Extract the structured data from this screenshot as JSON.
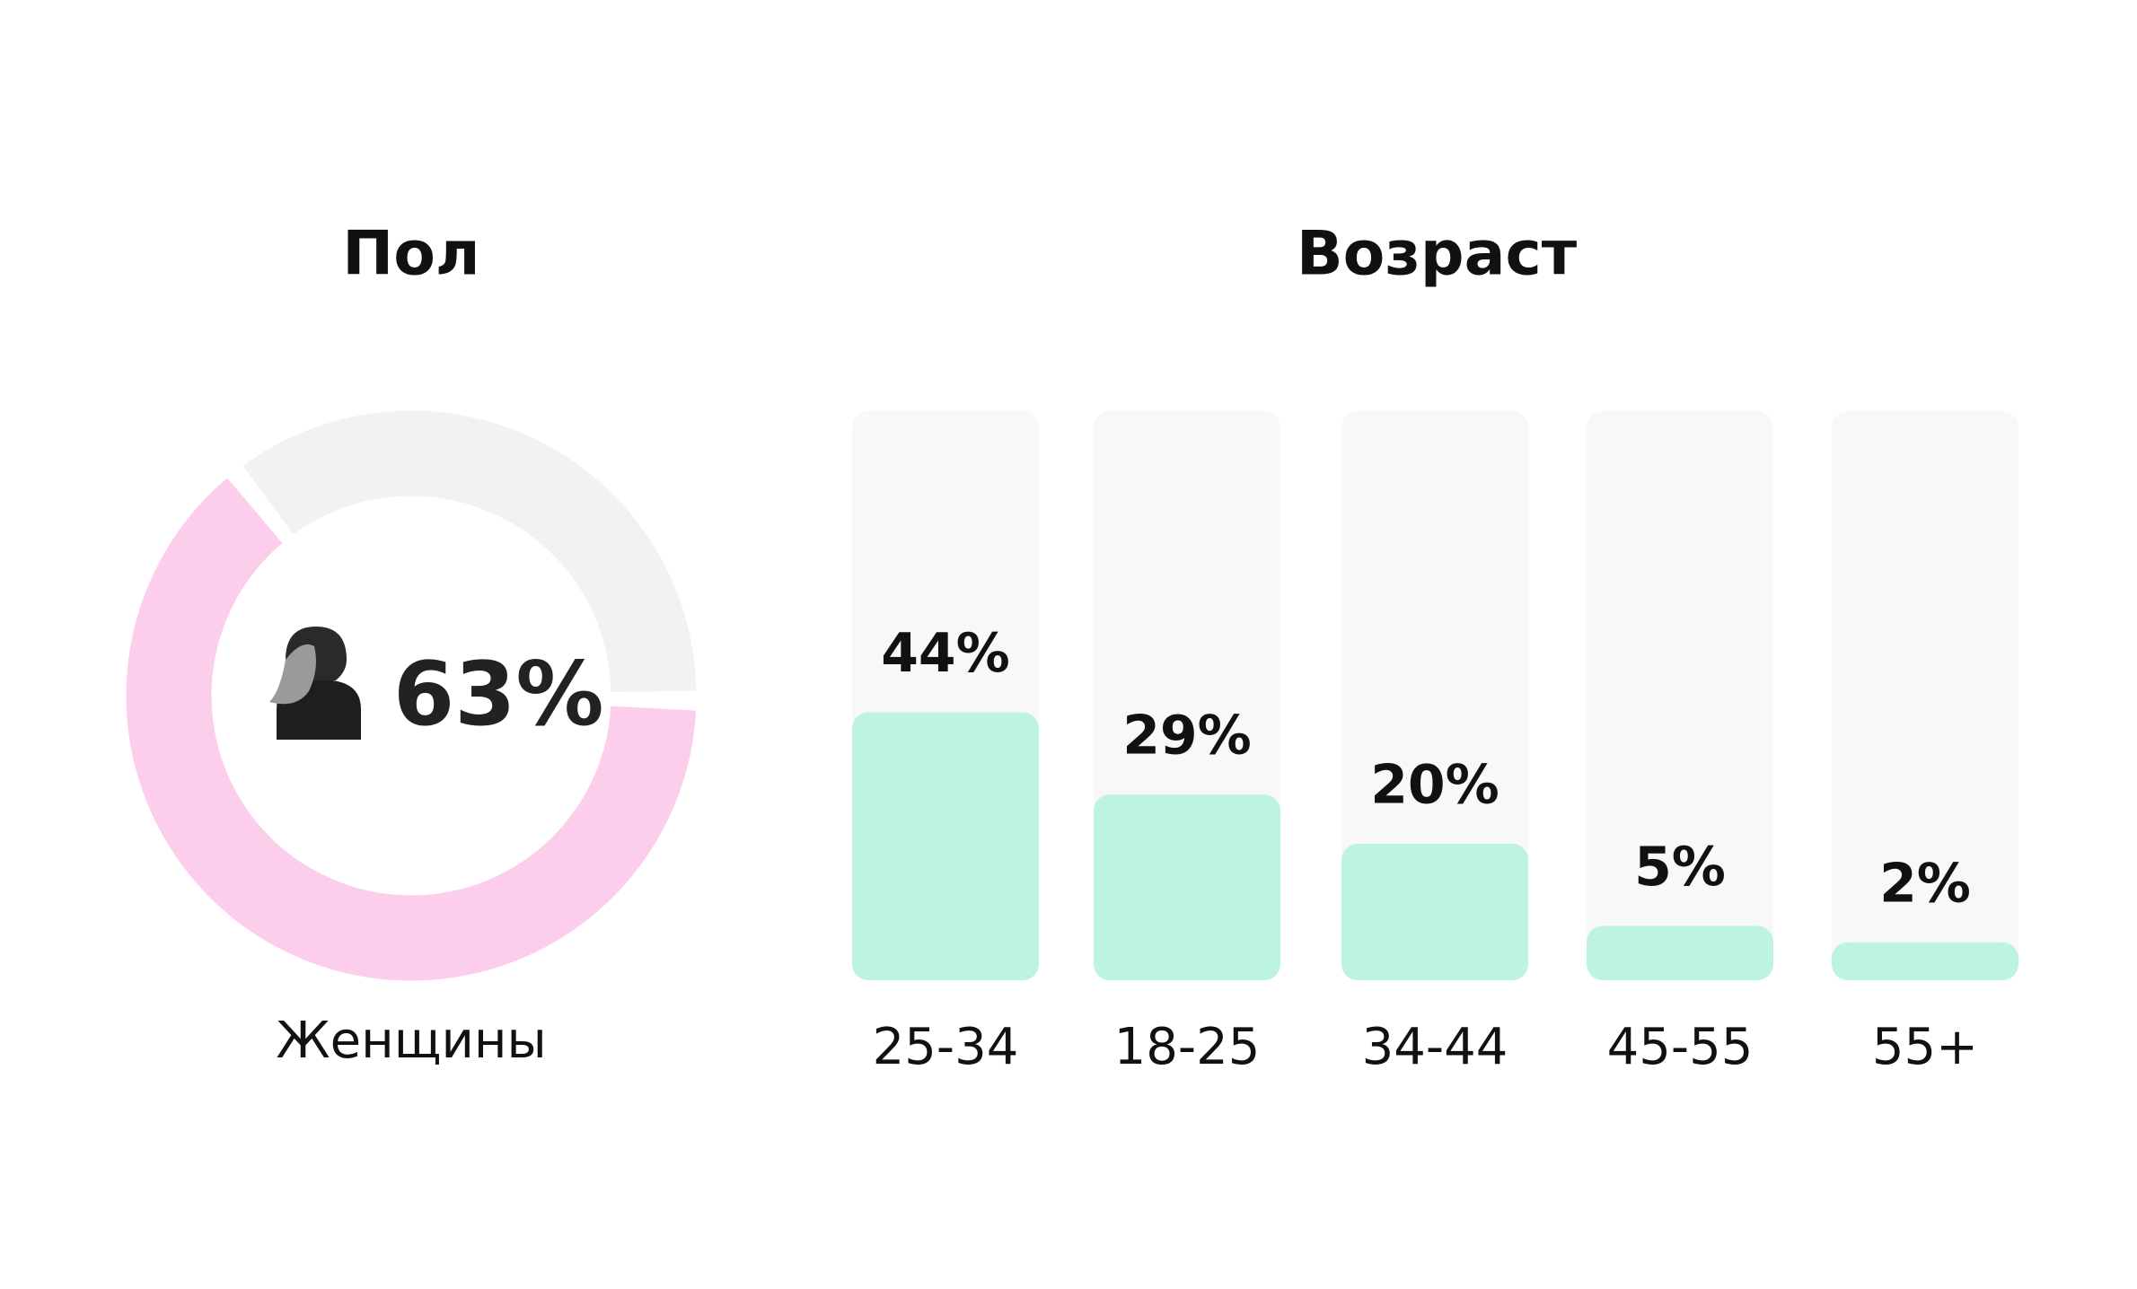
{
  "chart_data": [
    {
      "type": "donut",
      "title": "Пол",
      "categories": [
        "Женщины"
      ],
      "values": [
        63
      ],
      "value_labels": [
        "63%"
      ],
      "color": "#fdcdec",
      "track_color": "#f2f2f2"
    },
    {
      "type": "bar",
      "title": "Возраст",
      "categories": [
        "25-34",
        "18-25",
        "34-44",
        "45-55",
        "55+"
      ],
      "values": [
        44,
        29,
        20,
        5,
        2
      ],
      "value_labels": [
        "44%",
        "29%",
        "20%",
        "5%",
        "2%"
      ],
      "color": "#bdf3e3",
      "track_color": "#f8f8f8"
    }
  ]
}
